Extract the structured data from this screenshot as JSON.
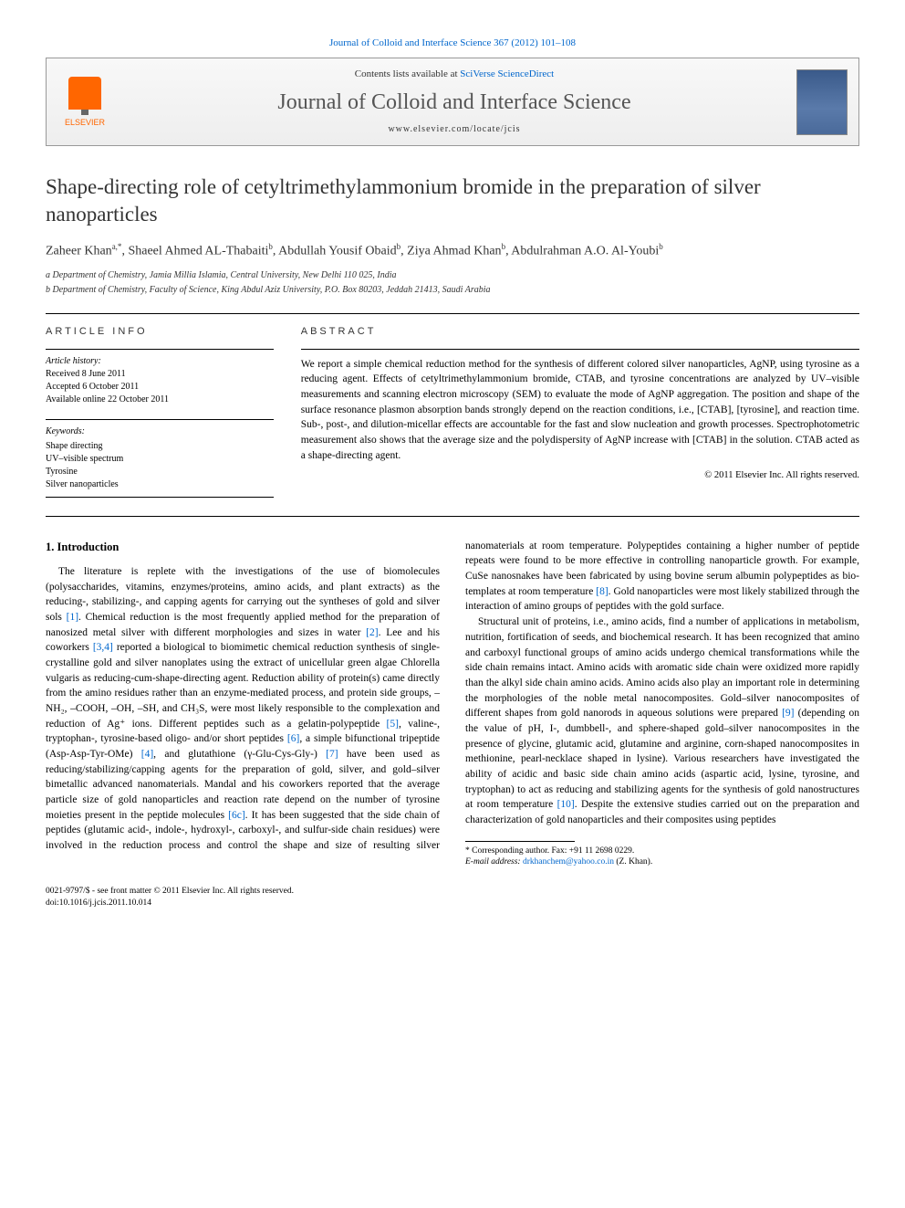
{
  "header": {
    "citation_link": "Journal of Colloid and Interface Science 367 (2012) 101–108",
    "contents_prefix": "Contents lists available at ",
    "contents_source": "SciVerse ScienceDirect",
    "journal_title": "Journal of Colloid and Interface Science",
    "journal_url": "www.elsevier.com/locate/jcis",
    "publisher_name": "ELSEVIER"
  },
  "article": {
    "title": "Shape-directing role of cetyltrimethylammonium bromide in the preparation of silver nanoparticles",
    "authors_html": "Zaheer Khan",
    "author_a_sup": "a,*",
    "author_2": ", Shaeel Ahmed AL-Thabaiti",
    "author_b_sup": "b",
    "author_3": ", Abdullah Yousif Obaid",
    "author_4": ", Ziya Ahmad Khan",
    "author_5": ", Abdulrahman A.O. Al-Youbi",
    "affiliations": {
      "a": "a Department of Chemistry, Jamia Millia Islamia, Central University, New Delhi 110 025, India",
      "b": "b Department of Chemistry, Faculty of Science, King Abdul Aziz University, P.O. Box 80203, Jeddah 21413, Saudi Arabia"
    }
  },
  "info": {
    "label": "article info",
    "history_label": "Article history:",
    "received": "Received 8 June 2011",
    "accepted": "Accepted 6 October 2011",
    "online": "Available online 22 October 2011",
    "keywords_label": "Keywords:",
    "keywords": [
      "Shape directing",
      "UV–visible spectrum",
      "Tyrosine",
      "Silver nanoparticles"
    ]
  },
  "abstract": {
    "label": "abstract",
    "text": "We report a simple chemical reduction method for the synthesis of different colored silver nanoparticles, AgNP, using tyrosine as a reducing agent. Effects of cetyltrimethylammonium bromide, CTAB, and tyrosine concentrations are analyzed by UV–visible measurements and scanning electron microscopy (SEM) to evaluate the mode of AgNP aggregation. The position and shape of the surface resonance plasmon absorption bands strongly depend on the reaction conditions, i.e., [CTAB], [tyrosine], and reaction time. Sub-, post-, and dilution-micellar effects are accountable for the fast and slow nucleation and growth processes. Spectrophotometric measurement also shows that the average size and the polydispersity of AgNP increase with [CTAB] in the solution. CTAB acted as a shape-directing agent.",
    "copyright": "© 2011 Elsevier Inc. All rights reserved."
  },
  "body": {
    "intro_heading": "1. Introduction",
    "p1a": "The literature is replete with the investigations of the use of biomolecules (polysaccharides, vitamins, enzymes/proteins, amino acids, and plant extracts) as the reducing-, stabilizing-, and capping agents for carrying out the syntheses of gold and silver sols ",
    "r1": "[1]",
    "p1b": ". Chemical reduction is the most frequently applied method for the preparation of nanosized metal silver with different morphologies and sizes in water ",
    "r2": "[2]",
    "p1c": ". Lee and his coworkers ",
    "r34": "[3,4]",
    "p1d": " reported a biological to biomimetic chemical reduction synthesis of single-crystalline gold and silver nanoplates using the extract of unicellular green algae Chlorella vulgaris as reducing-cum-shape-directing agent. Reduction ability of protein(s) came directly from the amino residues rather than an enzyme-mediated process, and protein side groups, –NH₂, –COOH, –OH, –SH, and CH₃S, were most likely responsible to the complexation and reduction of Ag⁺ ions. Different peptides such as a gelatin-polypeptide ",
    "r5": "[5]",
    "p1e": ", valine-, tryptophan-, tyrosine-based oligo- and/or short peptides ",
    "r6": "[6]",
    "p1f": ", a simple bifunctional tripeptide (Asp-Asp-Tyr-OMe) ",
    "r4": "[4]",
    "p1g": ", and glutathione (γ-Glu-Cys-Gly-) ",
    "r7": "[7]",
    "p1h": " have been used as reducing/stabilizing/capping agents for the preparation of gold, silver, and gold–silver bimetallic advanced nanomaterials. Mandal and his coworkers reported that the average particle size of gold nanoparticles and reaction rate depend on the number of tyrosine moieties present in the peptide molecules ",
    "r6c": "[6c]",
    "p1i": ". It has been suggested that the side chain of peptides ",
    "p2a": "(glutamic acid-, indole-, hydroxyl-, carboxyl-, and sulfur-side chain residues) were involved in the reduction process and control the shape and size of resulting silver nanomaterials at room temperature. Polypeptides containing a higher number of peptide repeats were found to be more effective in controlling nanoparticle growth. For example, CuSe nanosnakes have been fabricated by using bovine serum albumin polypeptides as bio-templates at room temperature ",
    "r8": "[8]",
    "p2b": ". Gold nanoparticles were most likely stabilized through the interaction of amino groups of peptides with the gold surface.",
    "p3a": "Structural unit of proteins, i.e., amino acids, find a number of applications in metabolism, nutrition, fortification of seeds, and biochemical research. It has been recognized that amino and carboxyl functional groups of amino acids undergo chemical transformations while the side chain remains intact. Amino acids with aromatic side chain were oxidized more rapidly than the alkyl side chain amino acids. Amino acids also play an important role in determining the morphologies of the noble metal nanocomposites. Gold–silver nanocomposites of different shapes from gold nanorods in aqueous solutions were prepared ",
    "r9": "[9]",
    "p3b": " (depending on the value of pH, I-, dumbbell-, and sphere-shaped gold–silver nanocomposites in the presence of glycine, glutamic acid, glutamine and arginine, corn-shaped nanocomposites in methionine, pearl-necklace shaped in lysine). Various researchers have investigated the ability of acidic and basic side chain amino acids (aspartic acid, lysine, tyrosine, and tryptophan) to act as reducing and stabilizing agents for the synthesis of gold nanostructures at room temperature ",
    "r10": "[10]",
    "p3c": ". Despite the extensive studies carried out on the preparation and characterization of gold nanoparticles and their composites using peptides"
  },
  "footnote": {
    "corr": "* Corresponding author. Fax: +91 11 2698 0229.",
    "email_label": "E-mail address: ",
    "email": "drkhanchem@yahoo.co.in",
    "email_who": " (Z. Khan)."
  },
  "footer": {
    "line1": "0021-9797/$ - see front matter © 2011 Elsevier Inc. All rights reserved.",
    "line2": "doi:10.1016/j.jcis.2011.10.014"
  },
  "colors": {
    "link": "#0066cc",
    "elsevier_orange": "#ff6600",
    "text": "#000000"
  }
}
